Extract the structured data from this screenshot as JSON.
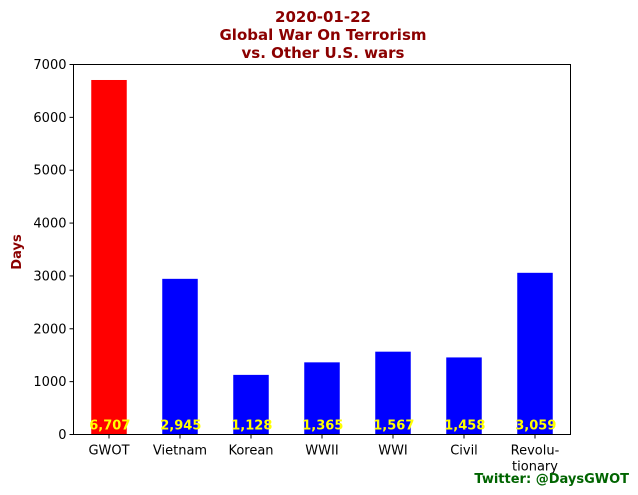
{
  "chart_data": {
    "type": "bar",
    "title_lines": [
      "2020-01-22",
      "Global War On Terrorism",
      "vs. Other U.S. wars"
    ],
    "ylabel": "Days",
    "xlabel": "",
    "ylim": [
      0,
      7000
    ],
    "yticks": [
      0,
      1000,
      2000,
      3000,
      4000,
      5000,
      6000,
      7000
    ],
    "categories": [
      [
        "GWOT"
      ],
      [
        "Vietnam"
      ],
      [
        "Korean"
      ],
      [
        "WWII"
      ],
      [
        "WWI"
      ],
      [
        "Civil"
      ],
      [
        "Revolu-",
        "tionary"
      ]
    ],
    "values": [
      6707,
      2945,
      1128,
      1365,
      1567,
      1458,
      3059
    ],
    "data_labels": [
      "6,707",
      "2,945",
      "1,128",
      "1,365",
      "1,567",
      "1,458",
      "3,059"
    ],
    "colors": [
      "#ff0000",
      "#0000ff",
      "#0000ff",
      "#0000ff",
      "#0000ff",
      "#0000ff",
      "#0000ff"
    ],
    "label_color": "#ffff00",
    "grid": false,
    "legend": "none"
  },
  "credit": {
    "text": "Twitter: @DaysGWOT",
    "color": "#006400"
  }
}
